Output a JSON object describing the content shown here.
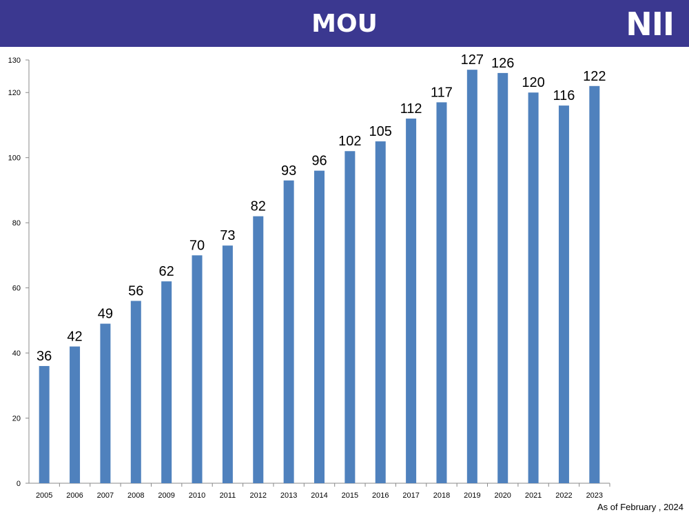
{
  "header": {
    "title": "MOU",
    "logo_text": "NII",
    "background": "#3b3890"
  },
  "footnote": "As of February , 2024",
  "chart_data": {
    "type": "bar",
    "title": "MOU",
    "xlabel": "",
    "ylabel": "",
    "categories": [
      "2005",
      "2006",
      "2007",
      "2008",
      "2009",
      "2010",
      "2011",
      "2012",
      "2013",
      "2014",
      "2015",
      "2016",
      "2017",
      "2018",
      "2019",
      "2020",
      "2021",
      "2022",
      "2023"
    ],
    "values": [
      36,
      42,
      49,
      56,
      62,
      70,
      73,
      82,
      93,
      96,
      102,
      105,
      112,
      117,
      127,
      126,
      120,
      116,
      122
    ],
    "ylim": [
      0,
      130
    ],
    "yticks": [
      0,
      20,
      40,
      60,
      80,
      100,
      120,
      130
    ],
    "bar_color": "#4f81bd",
    "data_labels": true,
    "grid": false,
    "legend": "none"
  }
}
